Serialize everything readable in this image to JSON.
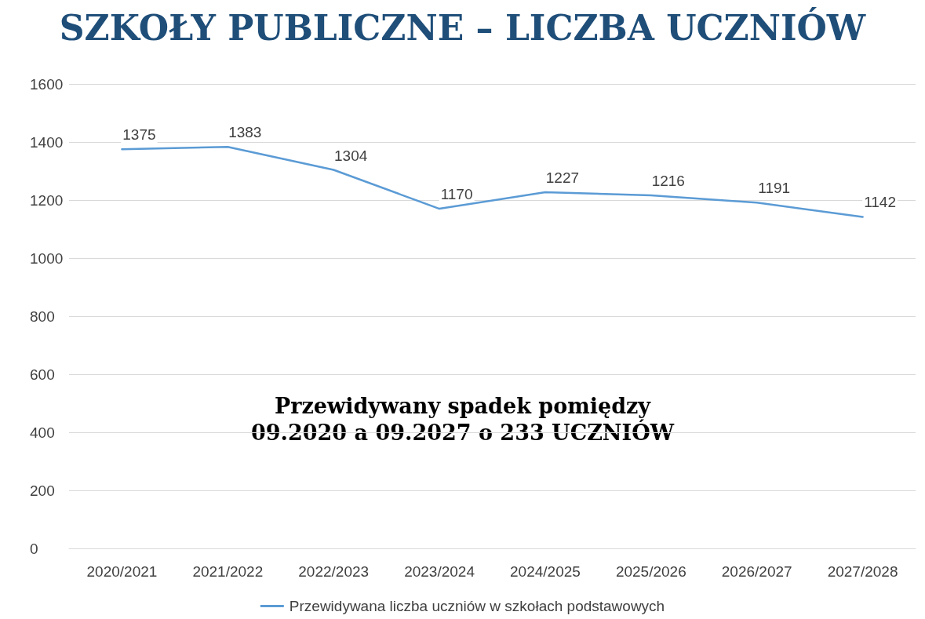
{
  "chart_data": {
    "type": "line",
    "title": "SZKOŁY PUBLICZNE – LICZBA UCZNIÓW",
    "categories": [
      "2020/2021",
      "2021/2022",
      "2022/2023",
      "2023/2024",
      "2024/2025",
      "2025/2026",
      "2026/2027",
      "2027/2028"
    ],
    "series": [
      {
        "name": "Przewidywana liczba uczniów w szkołach podstawowych",
        "color": "#5b9bd5",
        "values": [
          1375,
          1383,
          1304,
          1170,
          1227,
          1216,
          1191,
          1142
        ]
      }
    ],
    "ylim": [
      0,
      1600
    ],
    "yticks": [
      0,
      200,
      400,
      600,
      800,
      1000,
      1200,
      1400,
      1600
    ],
    "grid": "y",
    "legend": "bottom",
    "data_labels": true,
    "marker": "none",
    "line_style": "solid",
    "annotations": [
      "Przewidywany spadek pomiędzy\n09.2020 a 09.2027 o 233 UCZNIÓW"
    ]
  }
}
